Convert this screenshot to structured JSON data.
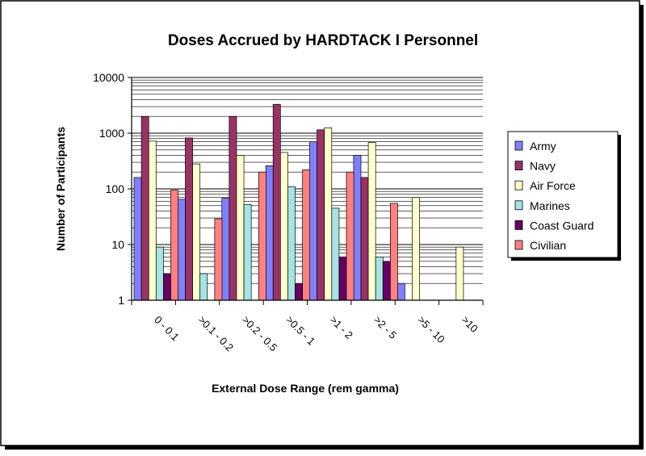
{
  "chart_data": {
    "type": "bar",
    "title": "Doses Accrued by HARDTACK I Personnel",
    "xlabel": "External Dose Range (rem gamma)",
    "ylabel": "Number of Participants",
    "yscale": "log",
    "ylim": [
      1,
      10000
    ],
    "y_ticks": [
      "1",
      "10",
      "100",
      "1000",
      "10000"
    ],
    "grid": "horizontal major and minor gridlines",
    "legend_position": "right",
    "categories": [
      "0 - 0.1",
      ">0.1 - 0.2",
      ">0.2 - 0.5",
      ">0.5 - 1",
      ">1 - 2",
      ">2 - 5",
      ">5 - 10",
      ">10"
    ],
    "series": [
      {
        "name": "Army",
        "color": "#8080ff",
        "values": [
          160,
          65,
          68,
          260,
          700,
          400,
          2,
          null
        ]
      },
      {
        "name": "Navy",
        "color": "#993366",
        "values": [
          2000,
          820,
          2000,
          3300,
          1150,
          160,
          null,
          null
        ]
      },
      {
        "name": "Air Force",
        "color": "#ffffcc",
        "values": [
          720,
          280,
          400,
          450,
          1250,
          680,
          70,
          9
        ]
      },
      {
        "name": "Marines",
        "color": "#a6e3e3",
        "values": [
          9,
          3,
          52,
          110,
          45,
          6,
          null,
          null
        ]
      },
      {
        "name": "Coast Guard",
        "color": "#660066",
        "values": [
          3,
          null,
          null,
          2,
          6,
          5,
          null,
          null
        ]
      },
      {
        "name": "Civilian",
        "color": "#ff8080",
        "values": [
          95,
          29,
          200,
          220,
          200,
          55,
          null,
          null
        ]
      }
    ]
  }
}
